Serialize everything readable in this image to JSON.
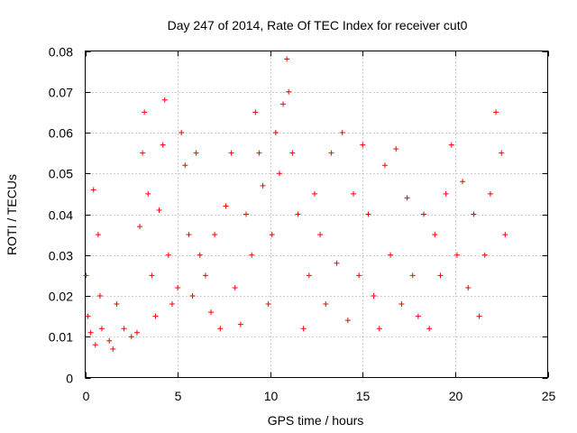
{
  "chart_data": {
    "type": "scatter",
    "title": "Day 247 of 2014, Rate Of TEC Index for receiver cut0",
    "xlabel": "GPS time / hours",
    "ylabel": "ROTI / TECUs",
    "xlim": [
      0,
      25
    ],
    "ylim": [
      0,
      0.08
    ],
    "x_ticks": [
      "0",
      "5",
      "10",
      "15",
      "20",
      "25"
    ],
    "y_ticks": [
      "0",
      "0.01",
      "0.02",
      "0.03",
      "0.04",
      "0.05",
      "0.06",
      "0.07",
      "0.08"
    ],
    "grid": true,
    "marker": "+",
    "color": "#ff0000",
    "series": [
      {
        "name": "ROTI",
        "x": [
          0.05,
          0.15,
          0.3,
          0.45,
          0.55,
          0.7,
          0.8,
          0.9,
          1.3,
          1.5,
          1.7,
          2.1,
          2.5,
          2.8,
          2.95,
          3.1,
          3.2,
          3.4,
          3.6,
          3.8,
          4.0,
          4.2,
          4.3,
          4.5,
          4.7,
          5.0,
          5.2,
          5.4,
          5.6,
          5.8,
          6.0,
          6.2,
          6.5,
          6.8,
          7.0,
          7.3,
          7.6,
          7.9,
          8.1,
          8.4,
          8.7,
          9.0,
          9.2,
          9.4,
          9.6,
          9.9,
          10.1,
          10.3,
          10.5,
          10.7,
          10.9,
          11.0,
          11.2,
          11.5,
          11.8,
          12.1,
          12.4,
          12.7,
          13.0,
          13.3,
          13.6,
          13.9,
          14.2,
          14.5,
          14.8,
          15.0,
          15.3,
          15.6,
          15.9,
          16.2,
          16.5,
          16.8,
          17.1,
          17.4,
          17.7,
          18.0,
          18.3,
          18.6,
          18.9,
          19.2,
          19.5,
          19.8,
          20.1,
          20.4,
          20.7,
          21.0,
          21.3,
          21.6,
          21.9,
          22.2,
          22.5,
          22.7
        ],
        "y": [
          0.025,
          0.015,
          0.011,
          0.046,
          0.008,
          0.035,
          0.02,
          0.012,
          0.009,
          0.007,
          0.018,
          0.012,
          0.01,
          0.011,
          0.037,
          0.055,
          0.065,
          0.045,
          0.025,
          0.015,
          0.041,
          0.057,
          0.068,
          0.03,
          0.018,
          0.022,
          0.06,
          0.052,
          0.035,
          0.02,
          0.055,
          0.03,
          0.025,
          0.016,
          0.035,
          0.012,
          0.042,
          0.055,
          0.022,
          0.013,
          0.04,
          0.03,
          0.065,
          0.055,
          0.047,
          0.018,
          0.035,
          0.06,
          0.05,
          0.067,
          0.078,
          0.07,
          0.055,
          0.04,
          0.012,
          0.025,
          0.045,
          0.035,
          0.018,
          0.055,
          0.028,
          0.06,
          0.014,
          0.045,
          0.025,
          0.057,
          0.04,
          0.02,
          0.012,
          0.052,
          0.03,
          0.056,
          0.018,
          0.044,
          0.025,
          0.015,
          0.04,
          0.012,
          0.035,
          0.025,
          0.045,
          0.057,
          0.03,
          0.048,
          0.022,
          0.04,
          0.015,
          0.03,
          0.045,
          0.065,
          0.055,
          0.035
        ]
      }
    ]
  }
}
